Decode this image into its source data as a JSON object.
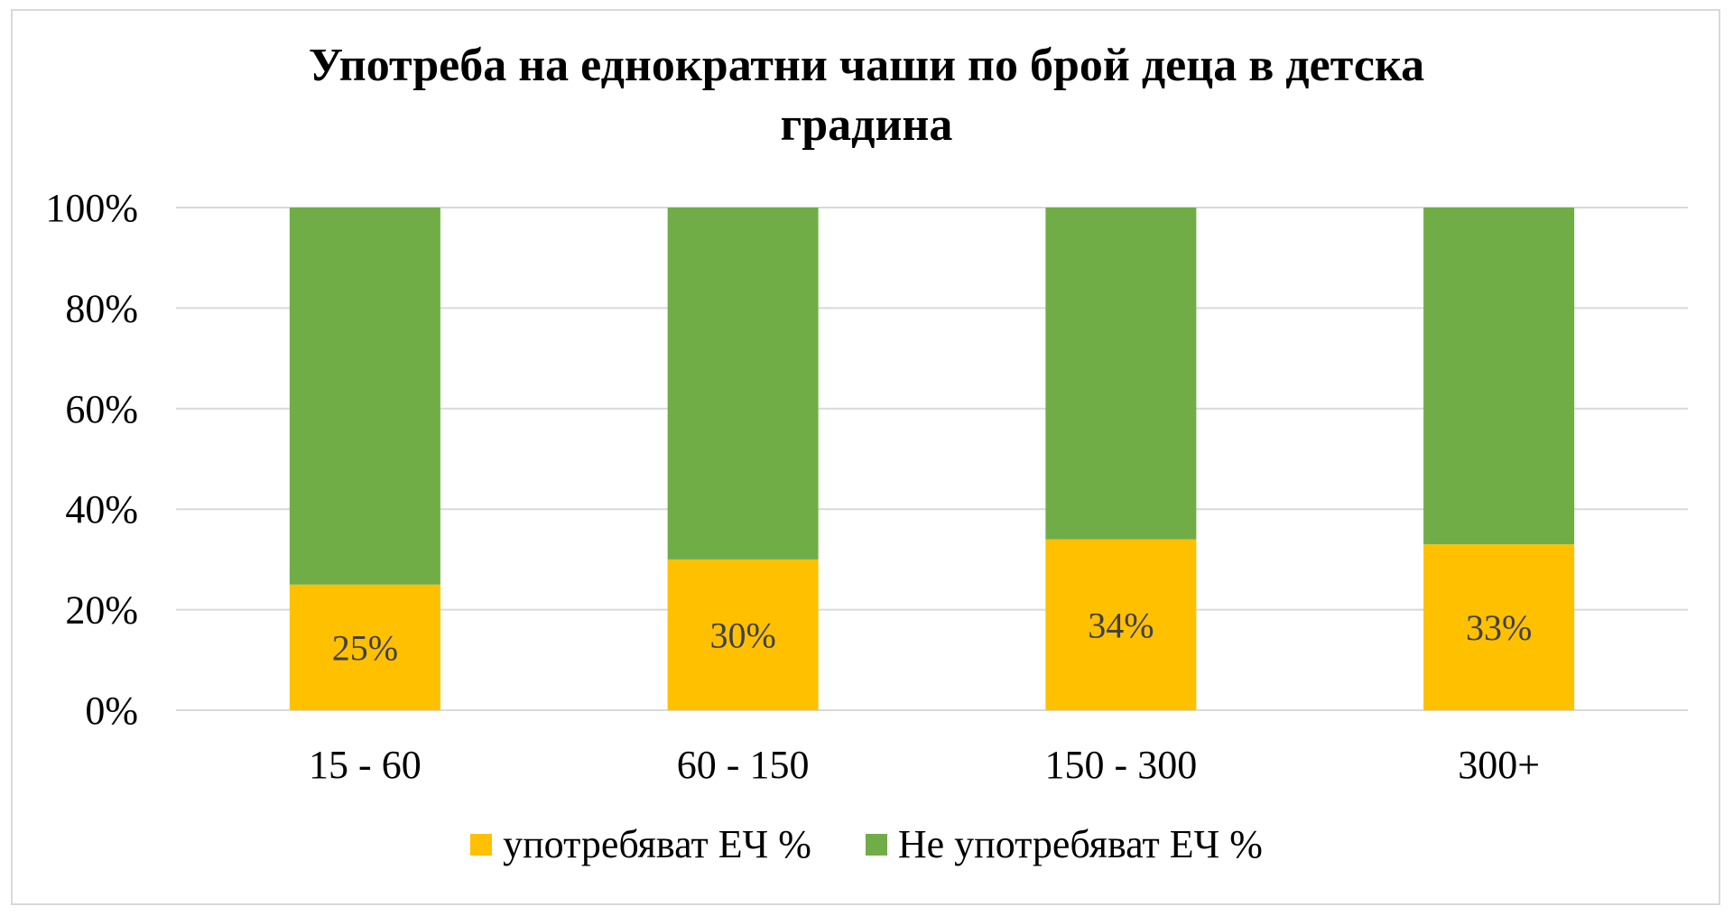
{
  "chart_data": {
    "type": "bar",
    "stacked": true,
    "title_lines": [
      "Употреба на еднократни чаши по брой деца в детска",
      "градина"
    ],
    "categories": [
      "15 - 60",
      "60 - 150",
      "150 - 300",
      "300+"
    ],
    "series": [
      {
        "name": "употребяват ЕЧ %",
        "color": "#FFC000",
        "values": [
          25,
          30,
          34,
          33
        ],
        "labels": [
          "25%",
          "30%",
          "34%",
          "33%"
        ]
      },
      {
        "name": "Не употребяват ЕЧ %",
        "color": "#70AD47",
        "values": [
          75,
          70,
          66,
          67
        ]
      }
    ],
    "ylim": [
      0,
      100
    ],
    "yticks": [
      "0%",
      "20%",
      "40%",
      "60%",
      "80%",
      "100%"
    ],
    "grid": true,
    "legend_position": "bottom"
  }
}
